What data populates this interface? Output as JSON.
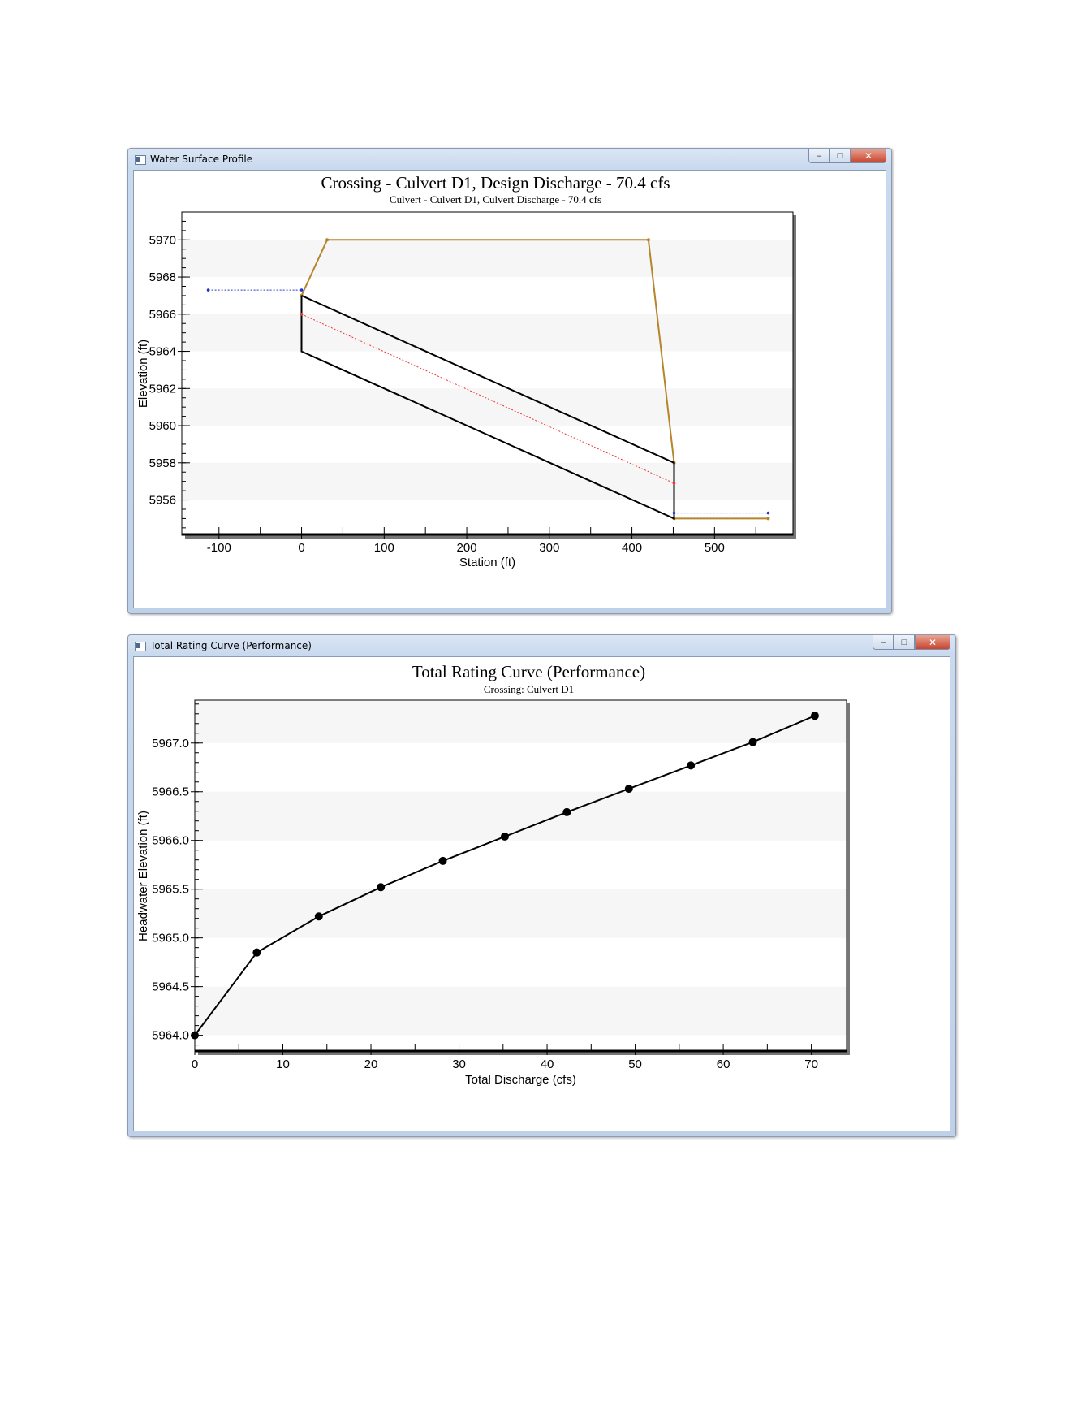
{
  "windows": [
    {
      "title": "Water Surface Profile",
      "controls": {
        "minimize": "–",
        "maximize": "□",
        "close": "✕"
      }
    },
    {
      "title": "Total Rating Curve (Performance)",
      "controls": {
        "minimize": "–",
        "maximize": "□",
        "close": "✕"
      }
    }
  ],
  "chart_data": [
    {
      "type": "line",
      "title": "Crossing - Culvert D1, Design Discharge - 70.4 cfs",
      "subtitle": "Culvert - Culvert D1, Culvert Discharge - 70.4 cfs",
      "xlabel": "Station (ft)",
      "ylabel": "Elevation (ft)",
      "xlim": [
        -145,
        595
      ],
      "ylim": [
        5954.1,
        5971.5
      ],
      "xticks": [
        -100,
        0,
        100,
        200,
        300,
        400,
        500
      ],
      "xtick_labels": [
        "-100",
        "0",
        "100",
        "200",
        "300",
        "400",
        "500"
      ],
      "yticks": [
        5956,
        5958,
        5960,
        5962,
        5964,
        5966,
        5968,
        5970
      ],
      "ytick_labels": [
        "5956",
        "5958",
        "5960",
        "5962",
        "5964",
        "5966",
        "5968",
        "5970"
      ],
      "grid": "alternating horizontal bands",
      "series": [
        {
          "color": "#b5852b",
          "x": [
            0,
            31,
            420,
            451,
            451,
            565
          ],
          "y": [
            5967.0,
            5970.0,
            5970.0,
            5958.0,
            5955.0,
            5955.0
          ],
          "markers": true
        },
        {
          "color": "#000000",
          "x": [
            0,
            451,
            451,
            0,
            0
          ],
          "y": [
            5967.0,
            5958.0,
            5955.0,
            5964.0,
            5967.0
          ],
          "markers": false
        },
        {
          "color": "#ee3333",
          "dashed": true,
          "x": [
            0,
            451
          ],
          "y": [
            5966.0,
            5956.9
          ],
          "markers": true
        },
        {
          "color": "#2233cc",
          "dashed": true,
          "x": [
            -113,
            0
          ],
          "y": [
            5967.3,
            5967.3
          ],
          "markers": true
        },
        {
          "color": "#2233cc",
          "dashed": true,
          "x": [
            451,
            565
          ],
          "y": [
            5955.3,
            5955.3
          ],
          "markers": true
        }
      ]
    },
    {
      "type": "line",
      "title": "Total Rating Curve (Performance)",
      "subtitle": "Crossing: Culvert D1",
      "xlabel": "Total Discharge (cfs)",
      "ylabel": "Headwater Elevation (ft)",
      "xlim": [
        0,
        74
      ],
      "ylim": [
        5963.83,
        5967.44
      ],
      "xticks": [
        0,
        10,
        20,
        30,
        40,
        50,
        60,
        70
      ],
      "xtick_labels": [
        "0",
        "10",
        "20",
        "30",
        "40",
        "50",
        "60",
        "70"
      ],
      "yticks": [
        5964.0,
        5964.5,
        5965.0,
        5965.5,
        5966.0,
        5966.5,
        5967.0
      ],
      "ytick_labels": [
        "5964.0",
        "5964.5",
        "5965.0",
        "5965.5",
        "5966.0",
        "5966.5",
        "5967.0"
      ],
      "grid": "alternating horizontal bands",
      "series": [
        {
          "color": "#000000",
          "x": [
            0,
            7.04,
            14.08,
            21.12,
            28.16,
            35.2,
            42.24,
            49.28,
            56.32,
            63.36,
            70.4
          ],
          "y": [
            5964.0,
            5964.85,
            5965.22,
            5965.52,
            5965.79,
            5966.04,
            5966.29,
            5966.53,
            5966.77,
            5967.01,
            5967.28
          ],
          "markers": true
        }
      ]
    }
  ]
}
